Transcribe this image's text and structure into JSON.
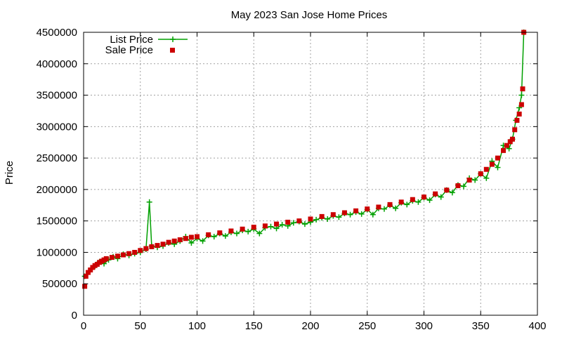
{
  "chart_data": {
    "type": "line",
    "title": "May 2023 San Jose Home Prices",
    "xlabel": "",
    "ylabel": "Price",
    "xlim": [
      0,
      400
    ],
    "ylim": [
      0,
      4500000
    ],
    "x_ticks": [
      0,
      50,
      100,
      150,
      200,
      250,
      300,
      350,
      400
    ],
    "y_ticks": [
      0,
      500000,
      1000000,
      1500000,
      2000000,
      2500000,
      3000000,
      3500000,
      4000000,
      4500000
    ],
    "x_tick_labels": [
      "0",
      "50",
      "100",
      "150",
      "200",
      "250",
      "300",
      "350",
      "400"
    ],
    "y_tick_labels": [
      "0",
      "500000",
      "1000000",
      "1500000",
      "2000000",
      "2500000",
      "3000000",
      "3500000",
      "4000000",
      "4500000"
    ],
    "grid": true,
    "legend_position": "top-left",
    "series": [
      {
        "name": "List Price",
        "style": "line-with-plus-markers",
        "color": "#00a000",
        "x": [
          1,
          5,
          10,
          14,
          18,
          22,
          26,
          30,
          35,
          40,
          45,
          50,
          55,
          58,
          60,
          65,
          70,
          75,
          80,
          85,
          90,
          95,
          100,
          105,
          110,
          115,
          120,
          125,
          130,
          135,
          140,
          145,
          150,
          155,
          160,
          165,
          170,
          175,
          180,
          185,
          190,
          195,
          200,
          205,
          210,
          215,
          220,
          225,
          230,
          235,
          240,
          245,
          250,
          255,
          260,
          265,
          270,
          275,
          280,
          285,
          290,
          295,
          300,
          305,
          310,
          315,
          320,
          325,
          330,
          335,
          340,
          345,
          350,
          355,
          360,
          365,
          370,
          375,
          378,
          381,
          384,
          386,
          388
        ],
        "values": [
          620000,
          700000,
          780000,
          850000,
          820000,
          880000,
          930000,
          900000,
          970000,
          950000,
          980000,
          1000000,
          1050000,
          1800000,
          1100000,
          1080000,
          1100000,
          1150000,
          1130000,
          1180000,
          1250000,
          1150000,
          1220000,
          1180000,
          1270000,
          1250000,
          1300000,
          1260000,
          1320000,
          1300000,
          1350000,
          1330000,
          1370000,
          1300000,
          1390000,
          1410000,
          1380000,
          1440000,
          1420000,
          1470000,
          1490000,
          1450000,
          1480000,
          1520000,
          1550000,
          1530000,
          1580000,
          1560000,
          1620000,
          1600000,
          1640000,
          1610000,
          1680000,
          1600000,
          1700000,
          1690000,
          1750000,
          1700000,
          1790000,
          1760000,
          1820000,
          1800000,
          1870000,
          1830000,
          1920000,
          1880000,
          1990000,
          1950000,
          2070000,
          2050000,
          2180000,
          2150000,
          2250000,
          2180000,
          2450000,
          2350000,
          2700000,
          2650000,
          2800000,
          3100000,
          3300000,
          3500000,
          4500000
        ]
      },
      {
        "name": "Sale Price",
        "style": "square-markers",
        "color": "#cc0000",
        "x": [
          1,
          2,
          4,
          6,
          8,
          10,
          12,
          14,
          16,
          18,
          20,
          25,
          30,
          35,
          40,
          45,
          50,
          55,
          60,
          65,
          70,
          75,
          80,
          85,
          90,
          95,
          100,
          110,
          120,
          130,
          140,
          150,
          160,
          170,
          180,
          190,
          200,
          210,
          220,
          230,
          240,
          250,
          260,
          270,
          280,
          290,
          300,
          310,
          320,
          330,
          340,
          350,
          355,
          360,
          365,
          370,
          373,
          376,
          378,
          380,
          382,
          384,
          386,
          387,
          388
        ],
        "values": [
          460000,
          620000,
          680000,
          720000,
          760000,
          790000,
          810000,
          840000,
          860000,
          880000,
          900000,
          920000,
          940000,
          960000,
          980000,
          1000000,
          1030000,
          1060000,
          1090000,
          1110000,
          1130000,
          1160000,
          1180000,
          1200000,
          1220000,
          1240000,
          1250000,
          1280000,
          1310000,
          1340000,
          1370000,
          1400000,
          1420000,
          1450000,
          1480000,
          1500000,
          1530000,
          1570000,
          1600000,
          1630000,
          1660000,
          1690000,
          1720000,
          1760000,
          1800000,
          1840000,
          1880000,
          1930000,
          1990000,
          2060000,
          2150000,
          2250000,
          2320000,
          2400000,
          2500000,
          2620000,
          2700000,
          2760000,
          2800000,
          2950000,
          3100000,
          3200000,
          3350000,
          3600000,
          4500000
        ]
      }
    ]
  }
}
